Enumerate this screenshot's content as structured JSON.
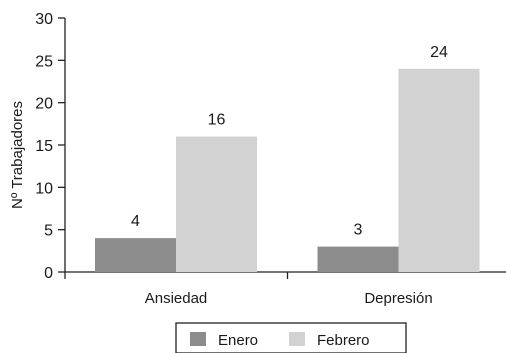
{
  "chart_data": {
    "type": "bar",
    "categories": [
      "Ansiedad",
      "Depresión"
    ],
    "series": [
      {
        "name": "Enero",
        "values": [
          4,
          3
        ],
        "color": "#8c8c8c"
      },
      {
        "name": "Febrero",
        "values": [
          16,
          24
        ],
        "color": "#d2d2d2"
      }
    ],
    "ylabel": "Nº Trabajadores",
    "xlabel": "",
    "ylim": [
      0,
      30
    ],
    "yticks": [
      0,
      5,
      10,
      15,
      20,
      25,
      30
    ],
    "grid": false,
    "legend": "bottom-center",
    "data_labels": true
  }
}
